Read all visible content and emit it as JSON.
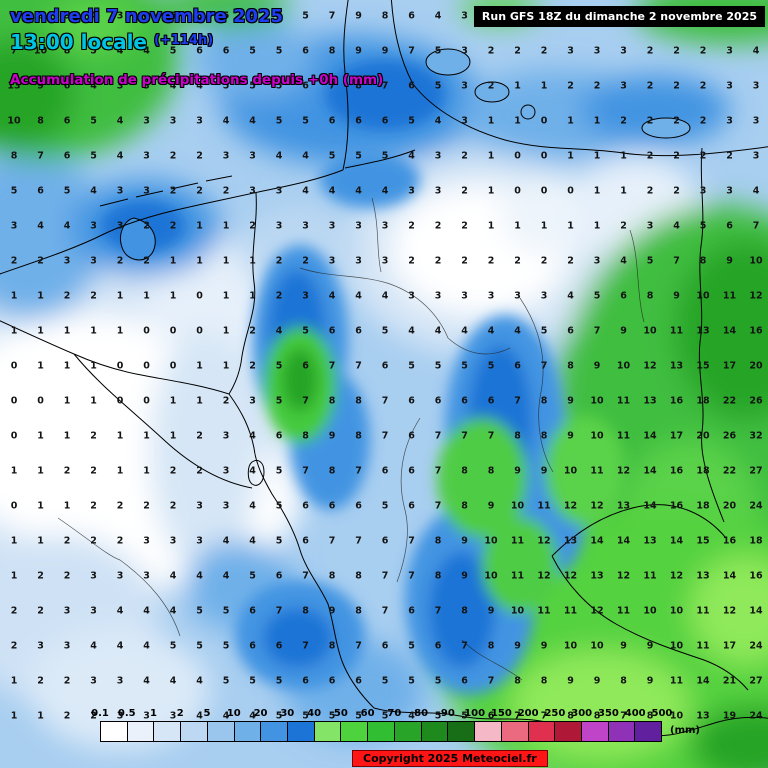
{
  "header": {
    "date_line": "vendredi 7 novembre 2025",
    "time_line": "13:00 locale",
    "forecast_offset": "(+114h)",
    "subtitle": "Accumulation de précipitations depuis +0h (mm)",
    "run_info": "Run GFS 18Z du dimanche 2 novembre 2025"
  },
  "footer": {
    "copyright": "Copyright 2025 Meteociel.fr"
  },
  "legend": {
    "unit_label": "(mm)",
    "ticks": [
      "0.1",
      "0.5",
      "1",
      "2",
      "5",
      "10",
      "20",
      "30",
      "40",
      "50",
      "60",
      "70",
      "80",
      "90",
      "100",
      "150",
      "200",
      "250",
      "300",
      "350",
      "400",
      "500"
    ],
    "colors": [
      "#FFFFFF",
      "#EAF1FA",
      "#D6E6F6",
      "#BCD8F2",
      "#9AC6EE",
      "#6FB0E9",
      "#4294E2",
      "#1C74D6",
      "#83E468",
      "#4ED23E",
      "#32BE32",
      "#28A428",
      "#1E8A1E",
      "#176E17",
      "#F4B8C6",
      "#EC6A80",
      "#E03050",
      "#B01838",
      "#C044C8",
      "#9032B8",
      "#61219E"
    ]
  },
  "map": {
    "palette": {
      "base_light_blue": "#A8CEF0",
      "white_zone": "#FFFFFF",
      "pale_blue": "#D6E6F6",
      "medium_blue": "#6FB0E9",
      "strong_blue": "#4294E2",
      "dark_blue": "#1C74D6",
      "green": "#3FBE3F",
      "bright_green": "#55D23F",
      "light_green": "#8FE95A",
      "dark_green": "#28A428"
    },
    "grid_values_rows": [
      "4 6 5 4 3 4 5 6 5 4 4 5 7 9 8 6 4 3 2 2 3 3 4 3 2 2 3 4 5",
      "7 10 8 5 4 4 5 6 6 5 5 6 8 9 9 7 5 3 2 2 2 3 3 3 2 2 2 3 4",
      "13 9 6 4 3 3 4 4 5 5 5 6 7 8 7 6 5 3 2 1 1 2 2 3 2 2 2 3 3",
      "10 8 6 5 4 3 3 3 4 4 5 5 6 6 6 5 4 3 1 1 0 1 1 2 2 2 2 3 3",
      "8 7 6 5 4 3 2 2 3 3 4 4 5 5 5 4 3 2 1 0 0 1 1 1 2 2 2 2 3",
      "5 6 5 4 3 3 2 2 2 3 3 4 4 4 4 3 3 2 1 0 0 0 1 1 2 2 3 3 4",
      "3 4 4 3 3 2 2 1 1 2 3 3 3 3 3 2 2 2 1 1 1 1 1 2 3 4 5 6 7",
      "2 2 3 3 2 2 1 1 1 1 2 2 3 3 3 2 2 2 2 2 2 2 3 4 5 7 8 9 10",
      "1 1 2 2 1 1 1 0 1 1 2 3 4 4 4 3 3 3 3 3 3 4 5 6 8 9 10 11 12",
      "1 1 1 1 1 0 0 0 1 2 4 5 6 6 5 4 4 4 4 4 5 6 7 9 10 11 13 14 16",
      "0 1 1 1 0 0 0 1 1 2 5 6 7 7 6 5 5 5 5 6 7 8 9 10 12 13 15 17 20",
      "0 0 1 1 0 0 1 1 2 3 5 7 8 8 7 6 6 6 6 7 8 9 10 11 13 16 18 22 26",
      "0 1 1 2 1 1 1 2 3 4 6 8 9 8 7 6 7 7 7 8 8 9 10 11 14 17 20 26 32",
      "1 1 2 2 1 1 2 2 3 4 5 7 8 7 6 6 7 8 8 9 9 10 11 12 14 16 18 22 27",
      "0 1 1 2 2 2 2 3 3 4 5 6 6 6 5 6 7 8 9 10 11 12 12 13 14 16 18 20 24",
      "1 1 2 2 2 3 3 3 4 4 5 6 7 7 6 7 8 9 10 11 12 13 14 14 13 14 15 16 18",
      "1 2 2 3 3 3 4 4 4 5 6 7 8 8 7 7 8 9 10 11 12 12 13 12 11 12 13 14 16",
      "2 2 3 3 4 4 4 5 5 6 7 8 9 8 7 6 7 8 9 10 11 11 12 11 10 10 11 12 14",
      "2 3 3 4 4 4 5 5 5 6 6 7 8 7 6 5 6 7 8 9 9 10 10 9 9 10 11 17 24",
      "1 2 2 3 3 4 4 4 5 5 5 6 6 6 5 5 5 6 7 8 8 9 9 8 9 11 14 21 27",
      "1 1 2 2 3 3 3 4 4 4 5 5 5 5 5 4 5 5 6 7 7 8 8 7 8 10 13 19 24"
    ]
  }
}
